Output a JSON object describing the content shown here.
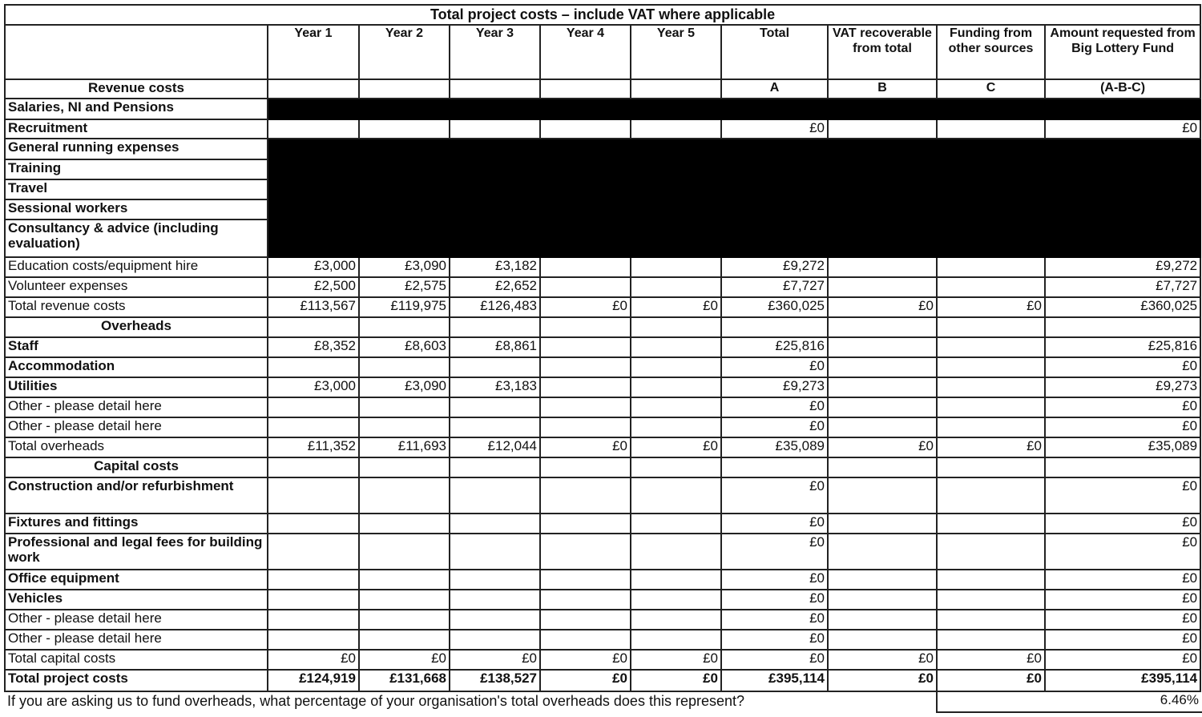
{
  "title": "Total project costs – include VAT where applicable",
  "columns": [
    "Year 1",
    "Year 2",
    "Year 3",
    "Year 4",
    "Year 5",
    "Total",
    "VAT recoverable from total",
    "Funding from other sources",
    "Amount requested from Big Lottery Fund"
  ],
  "column_letters": [
    "",
    "",
    "",
    "",
    "",
    "A",
    "B",
    "C",
    "(A-B-C)"
  ],
  "revenue_heading": "Revenue costs",
  "rows": [
    {
      "label": "Salaries, NI and Pensions",
      "bold": true,
      "redacted": true,
      "values": [
        "",
        "",
        "",
        "",
        "",
        "",
        "",
        "",
        ""
      ]
    },
    {
      "label": "Recruitment",
      "bold": true,
      "values": [
        "",
        "",
        "",
        "",
        "",
        "£0",
        "",
        "",
        "£0"
      ]
    },
    {
      "label": "General running expenses",
      "bold": true,
      "redacted": true,
      "values": [
        "",
        "",
        "",
        "",
        "",
        "",
        "",
        "",
        ""
      ]
    },
    {
      "label": "Training",
      "bold": true,
      "redacted": true,
      "values": [
        "",
        "",
        "",
        "",
        "",
        "",
        "",
        "",
        ""
      ]
    },
    {
      "label": "Travel",
      "bold": true,
      "redacted": true,
      "values": [
        "",
        "",
        "",
        "",
        "",
        "",
        "",
        "",
        ""
      ]
    },
    {
      "label": "Sessional workers",
      "bold": true,
      "redacted": true,
      "values": [
        "",
        "",
        "",
        "",
        "",
        "",
        "",
        "",
        ""
      ]
    },
    {
      "label": "Consultancy & advice (including evaluation)",
      "bold": true,
      "redacted": true,
      "values": [
        "",
        "",
        "",
        "",
        "",
        "",
        "",
        "",
        ""
      ]
    },
    {
      "label": "Education costs/equipment hire",
      "values": [
        "£3,000",
        "£3,090",
        "£3,182",
        "",
        "",
        "£9,272",
        "",
        "",
        "£9,272"
      ]
    },
    {
      "label": "Volunteer expenses",
      "values": [
        "£2,500",
        "£2,575",
        "£2,652",
        "",
        "",
        "£7,727",
        "",
        "",
        "£7,727"
      ]
    },
    {
      "label": "Total revenue costs",
      "values": [
        "£113,567",
        "£119,975",
        "£126,483",
        "£0",
        "£0",
        "£360,025",
        "£0",
        "£0",
        "£360,025"
      ]
    },
    {
      "section": "Overheads"
    },
    {
      "label": "Staff",
      "bold": true,
      "values": [
        "£8,352",
        "£8,603",
        "£8,861",
        "",
        "",
        "£25,816",
        "",
        "",
        "£25,816"
      ]
    },
    {
      "label": "Accommodation",
      "bold": true,
      "values": [
        "",
        "",
        "",
        "",
        "",
        "£0",
        "",
        "",
        "£0"
      ]
    },
    {
      "label": "Utilities",
      "bold": true,
      "values": [
        "£3,000",
        "£3,090",
        "£3,183",
        "",
        "",
        "£9,273",
        "",
        "",
        "£9,273"
      ]
    },
    {
      "label": "Other - please detail here",
      "values": [
        "",
        "",
        "",
        "",
        "",
        "£0",
        "",
        "",
        "£0"
      ]
    },
    {
      "label": "Other - please detail here",
      "values": [
        "",
        "",
        "",
        "",
        "",
        "£0",
        "",
        "",
        "£0"
      ]
    },
    {
      "label": "Total overheads",
      "values": [
        "£11,352",
        "£11,693",
        "£12,044",
        "£0",
        "£0",
        "£35,089",
        "£0",
        "£0",
        "£35,089"
      ]
    },
    {
      "section": "Capital costs"
    },
    {
      "label": "Construction and/or refurbishment",
      "bold": true,
      "values": [
        "",
        "",
        "",
        "",
        "",
        "£0",
        "",
        "",
        "£0"
      ]
    },
    {
      "label": "Fixtures and fittings",
      "bold": true,
      "values": [
        "",
        "",
        "",
        "",
        "",
        "£0",
        "",
        "",
        "£0"
      ]
    },
    {
      "label": "Professional and legal fees for building work",
      "bold": true,
      "values": [
        "",
        "",
        "",
        "",
        "",
        "£0",
        "",
        "",
        "£0"
      ]
    },
    {
      "label": "Office equipment",
      "bold": true,
      "values": [
        "",
        "",
        "",
        "",
        "",
        "£0",
        "",
        "",
        "£0"
      ]
    },
    {
      "label": "Vehicles",
      "bold": true,
      "values": [
        "",
        "",
        "",
        "",
        "",
        "£0",
        "",
        "",
        "£0"
      ]
    },
    {
      "label": "Other - please detail here",
      "values": [
        "",
        "",
        "",
        "",
        "",
        "£0",
        "",
        "",
        "£0"
      ]
    },
    {
      "label": "Other - please detail here",
      "values": [
        "",
        "",
        "",
        "",
        "",
        "£0",
        "",
        "",
        "£0"
      ]
    },
    {
      "label": "Total capital costs",
      "values": [
        "£0",
        "£0",
        "£0",
        "£0",
        "£0",
        "£0",
        "£0",
        "£0",
        "£0"
      ]
    },
    {
      "label": "Total project costs",
      "bold": true,
      "bold_values": true,
      "values": [
        "£124,919",
        "£131,668",
        "£138,527",
        "£0",
        "£0",
        "£395,114",
        "£0",
        "£0",
        "£395,114"
      ]
    }
  ],
  "footer": {
    "question": "If you are asking us to fund overheads, what percentage of your organisation's total overheads does this represent?",
    "value": "6.46%"
  }
}
